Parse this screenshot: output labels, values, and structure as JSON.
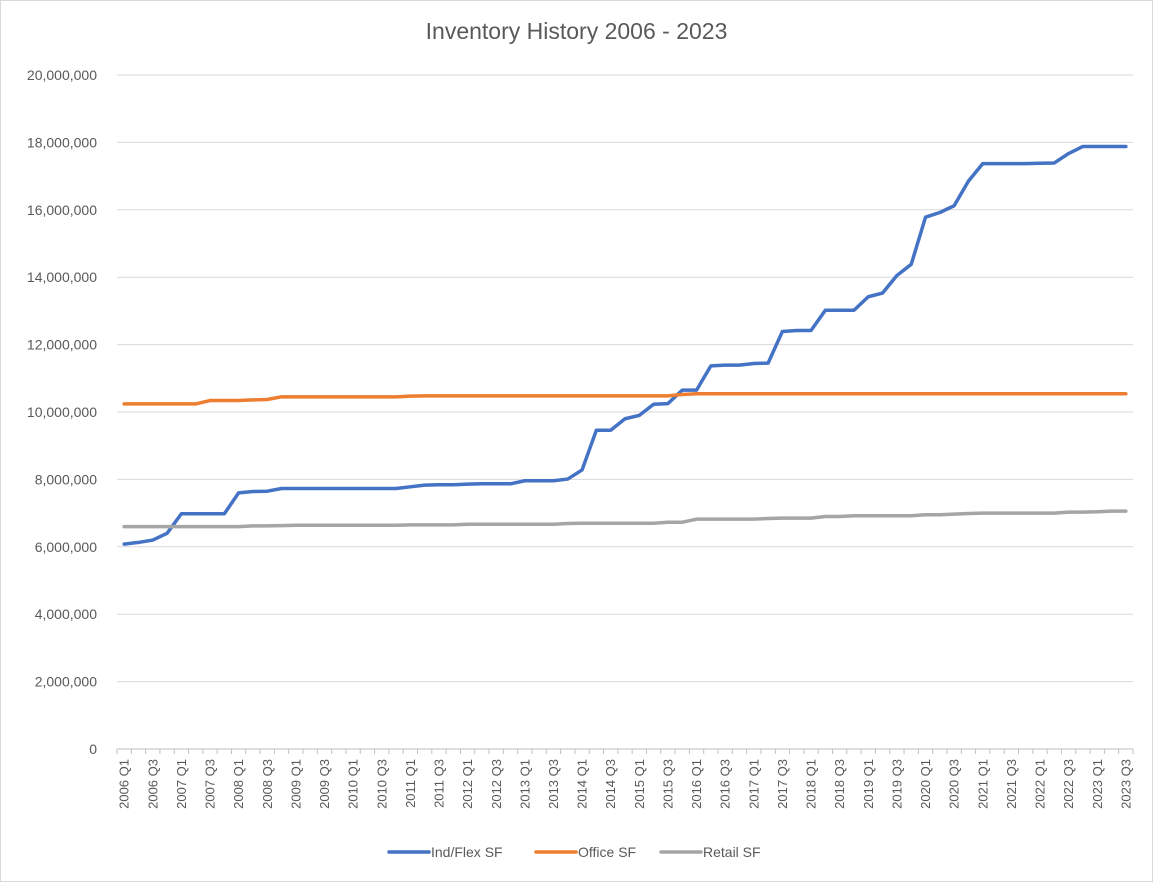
{
  "chart_data": {
    "type": "line",
    "title": "Inventory History 2006 - 2023",
    "xlabel": "",
    "ylabel": "",
    "ylim": [
      0,
      20000000
    ],
    "y_ticks": [
      0,
      2000000,
      4000000,
      6000000,
      8000000,
      10000000,
      12000000,
      14000000,
      16000000,
      18000000,
      20000000
    ],
    "y_tick_labels": [
      "0",
      "2,000,000",
      "4,000,000",
      "6,000,000",
      "8,000,000",
      "10,000,000",
      "12,000,000",
      "14,000,000",
      "16,000,000",
      "18,000,000",
      "20,000,000"
    ],
    "grid": true,
    "legend_position": "bottom",
    "categories": [
      "2006 Q1",
      "2006 Q2",
      "2006 Q3",
      "2006 Q4",
      "2007 Q1",
      "2007 Q2",
      "2007 Q3",
      "2007 Q4",
      "2008 Q1",
      "2008 Q2",
      "2008 Q3",
      "2008 Q4",
      "2009 Q1",
      "2009 Q2",
      "2009 Q3",
      "2009 Q4",
      "2010 Q1",
      "2010 Q2",
      "2010 Q3",
      "2010 Q4",
      "2011 Q1",
      "2011 Q2",
      "2011 Q3",
      "2011 Q4",
      "2012 Q1",
      "2012 Q2",
      "2012 Q3",
      "2012 Q4",
      "2013 Q1",
      "2013 Q2",
      "2013 Q3",
      "2013 Q4",
      "2014 Q1",
      "2014 Q2",
      "2014 Q3",
      "2014 Q4",
      "2015 Q1",
      "2015 Q2",
      "2015 Q3",
      "2015 Q4",
      "2016 Q1",
      "2016 Q2",
      "2016 Q3",
      "2016 Q4",
      "2017 Q1",
      "2017 Q2",
      "2017 Q3",
      "2017 Q4",
      "2018 Q1",
      "2018 Q2",
      "2018 Q3",
      "2018 Q4",
      "2019 Q1",
      "2019 Q2",
      "2019 Q3",
      "2019 Q4",
      "2020 Q1",
      "2020 Q2",
      "2020 Q3",
      "2020 Q4",
      "2021 Q1",
      "2021 Q2",
      "2021 Q3",
      "2021 Q4",
      "2022 Q1",
      "2022 Q2",
      "2022 Q3",
      "2022 Q4",
      "2023 Q1",
      "2023 Q2",
      "2023 Q3"
    ],
    "x_tick_labels": [
      "2006 Q1",
      "2006 Q3",
      "2007 Q1",
      "2007 Q3",
      "2008 Q1",
      "2008 Q3",
      "2009 Q1",
      "2009 Q3",
      "2010 Q1",
      "2010 Q3",
      "2011 Q1",
      "2011 Q3",
      "2012 Q1",
      "2012 Q3",
      "2013 Q1",
      "2013 Q3",
      "2014 Q1",
      "2014 Q3",
      "2015 Q1",
      "2015 Q3",
      "2016 Q1",
      "2016 Q3",
      "2017 Q1",
      "2017 Q3",
      "2018 Q1",
      "2018 Q3",
      "2019 Q1",
      "2019 Q3",
      "2020 Q1",
      "2020 Q3",
      "2021 Q1",
      "2021 Q3",
      "2022 Q1",
      "2022 Q3",
      "2023 Q1",
      "2023 Q3"
    ],
    "series": [
      {
        "name": "Ind/Flex SF",
        "color": "#4472c4",
        "values": [
          6080000,
          6130000,
          6200000,
          6400000,
          6980000,
          6980000,
          6980000,
          6980000,
          7600000,
          7640000,
          7650000,
          7730000,
          7730000,
          7730000,
          7730000,
          7730000,
          7730000,
          7730000,
          7730000,
          7730000,
          7780000,
          7830000,
          7840000,
          7840000,
          7860000,
          7870000,
          7870000,
          7870000,
          7960000,
          7960000,
          7960000,
          8010000,
          8280000,
          9460000,
          9460000,
          9800000,
          9900000,
          10230000,
          10250000,
          10650000,
          10650000,
          11370000,
          11390000,
          11390000,
          11440000,
          11450000,
          12390000,
          12420000,
          12420000,
          13020000,
          13020000,
          13020000,
          13420000,
          13530000,
          14050000,
          14380000,
          15780000,
          15920000,
          16120000,
          16850000,
          17370000,
          17370000,
          17370000,
          17370000,
          17380000,
          17390000,
          17670000,
          17880000,
          17880000,
          17880000,
          17880000
        ]
      },
      {
        "name": "Office SF",
        "color": "#ed7d31",
        "values": [
          10240000,
          10240000,
          10240000,
          10240000,
          10240000,
          10240000,
          10340000,
          10340000,
          10340000,
          10360000,
          10370000,
          10450000,
          10450000,
          10450000,
          10450000,
          10450000,
          10450000,
          10450000,
          10450000,
          10450000,
          10470000,
          10480000,
          10480000,
          10480000,
          10480000,
          10480000,
          10480000,
          10480000,
          10480000,
          10480000,
          10480000,
          10480000,
          10480000,
          10480000,
          10480000,
          10480000,
          10480000,
          10480000,
          10480000,
          10520000,
          10540000,
          10540000,
          10540000,
          10540000,
          10540000,
          10540000,
          10540000,
          10540000,
          10540000,
          10540000,
          10540000,
          10540000,
          10540000,
          10540000,
          10540000,
          10540000,
          10540000,
          10540000,
          10540000,
          10540000,
          10540000,
          10540000,
          10540000,
          10540000,
          10540000,
          10540000,
          10540000,
          10540000,
          10540000,
          10540000,
          10540000
        ]
      },
      {
        "name": "Retail SF",
        "color": "#a5a5a5",
        "values": [
          6600000,
          6600000,
          6600000,
          6600000,
          6600000,
          6600000,
          6600000,
          6600000,
          6600000,
          6620000,
          6620000,
          6630000,
          6640000,
          6640000,
          6640000,
          6640000,
          6640000,
          6640000,
          6640000,
          6640000,
          6650000,
          6650000,
          6650000,
          6650000,
          6670000,
          6670000,
          6670000,
          6670000,
          6670000,
          6670000,
          6670000,
          6690000,
          6700000,
          6700000,
          6700000,
          6700000,
          6700000,
          6700000,
          6730000,
          6730000,
          6820000,
          6820000,
          6820000,
          6820000,
          6820000,
          6840000,
          6850000,
          6850000,
          6850000,
          6900000,
          6900000,
          6920000,
          6920000,
          6920000,
          6920000,
          6920000,
          6950000,
          6950000,
          6970000,
          6990000,
          7000000,
          7000000,
          7000000,
          7000000,
          7000000,
          7000000,
          7030000,
          7030000,
          7040000,
          7060000,
          7060000
        ]
      }
    ]
  }
}
